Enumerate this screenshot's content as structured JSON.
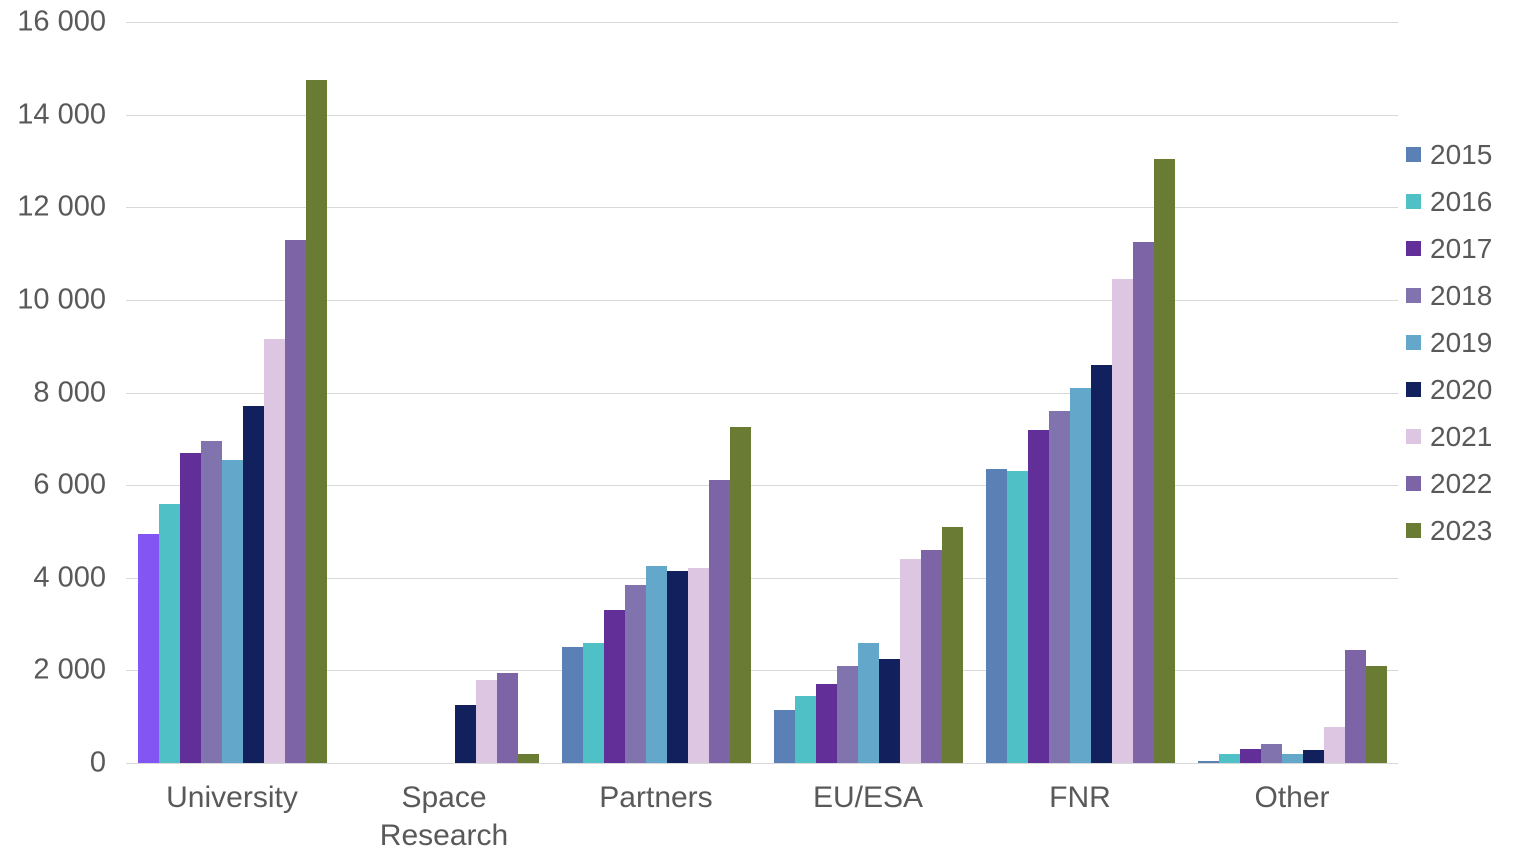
{
  "chart_data": {
    "type": "bar",
    "title": "",
    "xlabel": "",
    "ylabel": "",
    "categories": [
      "University",
      "Space Research",
      "Partners",
      "EU/ESA",
      "FNR",
      "Other"
    ],
    "series": [
      {
        "name": "2015",
        "color": "#5B80B6",
        "values": [
          4950,
          0,
          2500,
          1150,
          6350,
          50
        ]
      },
      {
        "name": "2016",
        "color": "#4FC0C6",
        "values": [
          5600,
          0,
          2600,
          1450,
          6300,
          190
        ]
      },
      {
        "name": "2017",
        "color": "#622E98",
        "values": [
          6700,
          0,
          3300,
          1700,
          7200,
          310
        ]
      },
      {
        "name": "2018",
        "color": "#8173AE",
        "values": [
          6950,
          0,
          3850,
          2100,
          7600,
          400
        ]
      },
      {
        "name": "2019",
        "color": "#63A7CB",
        "values": [
          6550,
          0,
          4250,
          2600,
          8100,
          200
        ]
      },
      {
        "name": "2020",
        "color": "#13205E",
        "values": [
          7700,
          1250,
          4150,
          2250,
          8600,
          280
        ]
      },
      {
        "name": "2021",
        "color": "#DCC6E2",
        "values": [
          9150,
          1800,
          4200,
          4400,
          10450,
          780
        ]
      },
      {
        "name": "2022",
        "color": "#7D64A6",
        "values": [
          11300,
          1950,
          6100,
          4600,
          11250,
          2450
        ]
      },
      {
        "name": "2023",
        "color": "#6A7B33",
        "values": [
          14750,
          200,
          7250,
          5100,
          13050,
          2100
        ]
      }
    ],
    "highlight": {
      "category": "University",
      "series": "2015",
      "color": "#8355F2"
    },
    "ylim": [
      0,
      16000
    ],
    "ytick_step": 2000,
    "ytick_labels": [
      "0",
      "2 000",
      "4 000",
      "6 000",
      "8 000",
      "10 000",
      "12 000",
      "14 000",
      "16 000"
    ],
    "legend_entries": [
      "2015",
      "2016",
      "2017",
      "2018",
      "2019",
      "2020",
      "2021",
      "2022",
      "2023"
    ],
    "legend_position": "right",
    "grid": true
  },
  "colors": {
    "background": "#FFFFFF",
    "grid": "#D9D9D9",
    "axis_text": "#595959"
  }
}
